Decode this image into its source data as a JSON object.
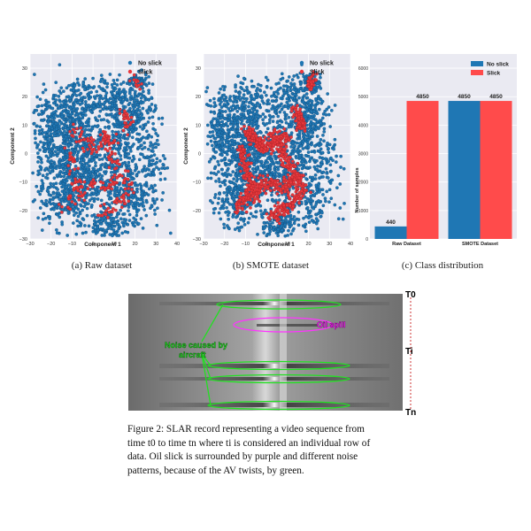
{
  "figure1": {
    "panels": [
      {
        "caption": "(a) Raw dataset",
        "xlabel": "Component 1",
        "ylabel": "Component 2",
        "xticks": [
          "−30",
          "−20",
          "−10",
          "0",
          "10",
          "20",
          "30",
          "40"
        ],
        "yticks": [
          "30",
          "20",
          "10",
          "0",
          "−10",
          "−20",
          "−30"
        ],
        "legend": [
          "No slick",
          "Slick"
        ]
      },
      {
        "caption": "(b) SMOTE dataset",
        "xlabel": "Component 1",
        "ylabel": "Component 2",
        "xticks": [
          "−30",
          "−20",
          "−10",
          "0",
          "10",
          "20",
          "30",
          "40"
        ],
        "yticks": [
          "30",
          "20",
          "10",
          "0",
          "−10",
          "−20",
          "−30"
        ],
        "legend": [
          "No slick",
          "Slick"
        ]
      }
    ],
    "bar_caption": "(c) Class distribution"
  },
  "chart_data": [
    {
      "type": "scatter",
      "xlabel": "Component 1",
      "ylabel": "Component 2",
      "xlim": [
        -30,
        40
      ],
      "ylim": [
        -30,
        35
      ],
      "series": [
        {
          "name": "No slick",
          "color": "#1f77b4"
        },
        {
          "name": "Slick",
          "color": "#e8383d"
        }
      ],
      "legend_placement": "top-right"
    },
    {
      "type": "scatter",
      "xlabel": "Component 1",
      "ylabel": "Component 2",
      "xlim": [
        -30,
        40
      ],
      "ylim": [
        -30,
        35
      ],
      "series": [
        {
          "name": "No slick",
          "color": "#1f77b4"
        },
        {
          "name": "Slick",
          "color": "#e8383d"
        }
      ],
      "legend_placement": "top-right"
    },
    {
      "type": "bar",
      "categories": [
        "Raw Dataset",
        "SMOTE Dataset"
      ],
      "series": [
        {
          "name": "No slick",
          "values": [
            440,
            4850
          ],
          "color": "#1f77b4"
        },
        {
          "name": "Slick",
          "values": [
            4850,
            4850
          ],
          "color": "#ff4b4b"
        }
      ],
      "ylabel": "Number of samples",
      "ylim": [
        0,
        6500
      ],
      "yticks": [
        "0",
        "1000",
        "2000",
        "3000",
        "4000",
        "5000",
        "6000"
      ],
      "data_labels": [
        "440",
        "4850",
        "4850",
        "4850"
      ],
      "legend_placement": "top-right"
    }
  ],
  "figure2": {
    "labels": {
      "t0": "T0",
      "ti": "Ti",
      "tn": "Tn",
      "oil": "Oil spill",
      "noise_line1": "Noise caused by",
      "noise_line2": "aircraft"
    },
    "caption_lines": [
      "Figure 2: SLAR record representing a video sequence from",
      "time t0 to time tn where ti is considered an individual row of",
      "data. Oil slick is surrounded by purple and different noise",
      "patterns, because of the AV twists, by green."
    ]
  }
}
